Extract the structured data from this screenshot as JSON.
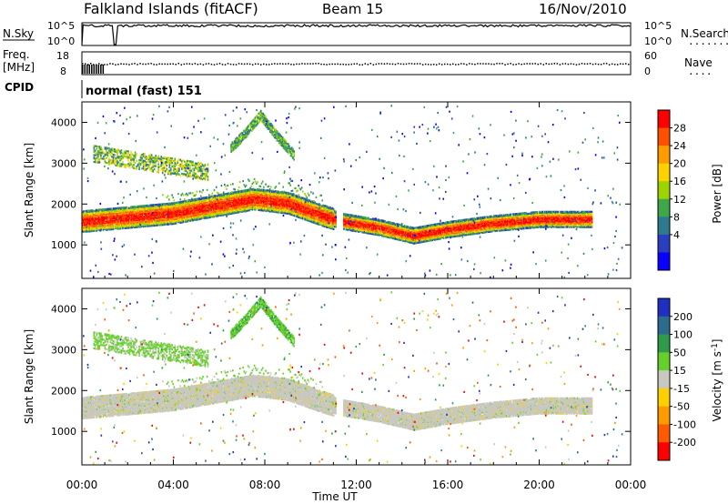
{
  "header": {
    "station": "Falkland Islands (fitACF)",
    "beam": "Beam 15",
    "date": "16/Nov/2010"
  },
  "strips": {
    "nsky": {
      "label": "N.Sky",
      "left_ticks": [
        "10^5",
        "10^0"
      ],
      "right_label": "N.Search",
      "right_ticks": [
        "10^5",
        "10^0"
      ],
      "right_dotted": "........"
    },
    "freq": {
      "label_line1": "Freq.",
      "label_line2": "[MHz]",
      "left_ticks": [
        "18",
        "8"
      ],
      "right_label": "Nave",
      "right_ticks": [
        "60",
        "0"
      ],
      "right_dotted": "...."
    },
    "cpid": {
      "label": "CPID",
      "value": "normal (fast) 151"
    }
  },
  "colorbars": {
    "power": {
      "title": "Power [dB]",
      "ticks": [
        "28",
        "24",
        "20",
        "16",
        "12",
        "8",
        "4"
      ],
      "colors": [
        "#ff0000",
        "#ff5000",
        "#ff9a00",
        "#ffd200",
        "#9cd300",
        "#3da74a",
        "#2e7a8c",
        "#2a3fbf",
        "#0a00ff"
      ]
    },
    "velocity": {
      "title": "Velocity [m s-1]",
      "title_main": "Velocity [m s",
      "title_sup": "-1",
      "title_end": "]",
      "ticks": [
        "200",
        "100",
        "50",
        "15",
        "-15",
        "-50",
        "-100",
        "-200"
      ],
      "colors": [
        "#1f2fbf",
        "#2c6b8e",
        "#2e9a4a",
        "#66d02a",
        "#c8c8c0",
        "#ffd000",
        "#ff9a00",
        "#ff5a00",
        "#ff0000"
      ]
    }
  },
  "axes": {
    "xlabel": "Time UT",
    "x_ticks": [
      "00:00",
      "04:00",
      "08:00",
      "12:00",
      "16:00",
      "20:00",
      "00:00"
    ],
    "ylabel": "Slant Range [km]",
    "y_ticks": [
      "1000",
      "2000",
      "3000",
      "4000"
    ]
  },
  "chart_data": [
    {
      "type": "heatmap",
      "panel": "power",
      "xlabel": "Time UT",
      "ylabel": "Slant Range [km]",
      "xlim_hours": [
        0,
        24
      ],
      "ylim_km": [
        180,
        4500
      ],
      "colorbar_label": "Power [dB]",
      "colorbar_ticks": [
        28,
        24,
        20,
        16,
        12,
        8,
        4
      ],
      "data_gap_hours": [
        11.1,
        11.4
      ],
      "main_band_km": {
        "hours": [
          0,
          2,
          4,
          6,
          7.5,
          9,
          10.5,
          11.4,
          13,
          14.5,
          16,
          18,
          20,
          22.2
        ],
        "center": [
          1600,
          1700,
          1800,
          2000,
          2150,
          2050,
          1750,
          1600,
          1450,
          1250,
          1400,
          1550,
          1650,
          1650
        ]
      },
      "upper_arc_km": {
        "hours": [
          6.5,
          7.2,
          7.8,
          8.5,
          9.3
        ],
        "range": [
          3400,
          3800,
          4200,
          3700,
          3200
        ]
      }
    },
    {
      "type": "heatmap",
      "panel": "velocity",
      "xlabel": "Time UT",
      "ylabel": "Slant Range [km]",
      "xlim_hours": [
        0,
        24
      ],
      "ylim_km": [
        180,
        4500
      ],
      "colorbar_label": "Velocity [m s-1]",
      "colorbar_ticks": [
        200,
        100,
        50,
        15,
        -15,
        -50,
        -100,
        -200
      ],
      "data_gap_hours": [
        11.1,
        11.4
      ]
    }
  ]
}
